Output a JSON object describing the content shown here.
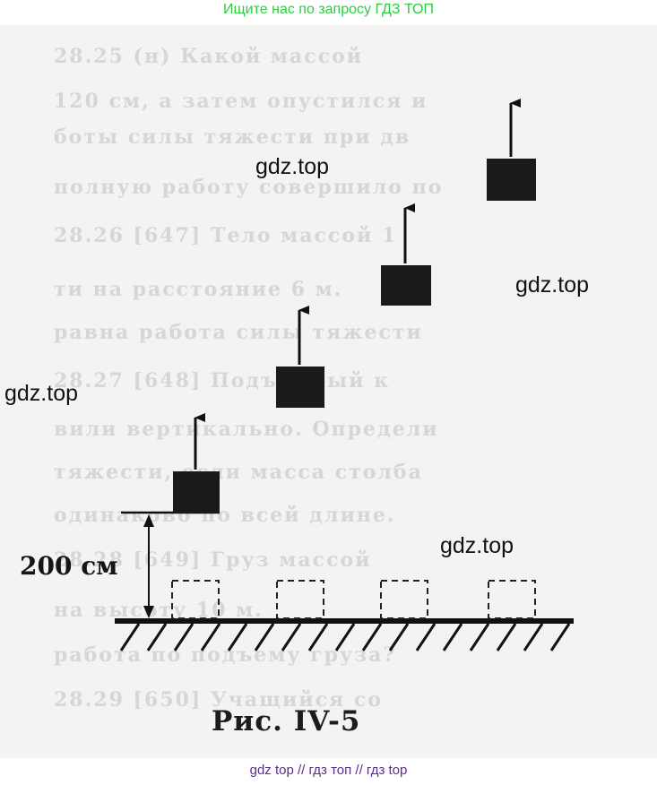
{
  "header": {
    "link_text": "Ищите нас по запросу ГДЗ ТОП",
    "color": "#2ecc40"
  },
  "watermarks": [
    "gdz.top",
    "gdz.top",
    "gdz.top",
    "gdz.top"
  ],
  "figure": {
    "height_label": "200 см",
    "caption": "Рис. IV-5",
    "block_color": "#1a1a1a",
    "line_color": "#111111"
  },
  "footer": {
    "link_text": "gdz top  //  гдз топ  //  гдз top",
    "color": "#5b2d8e"
  }
}
